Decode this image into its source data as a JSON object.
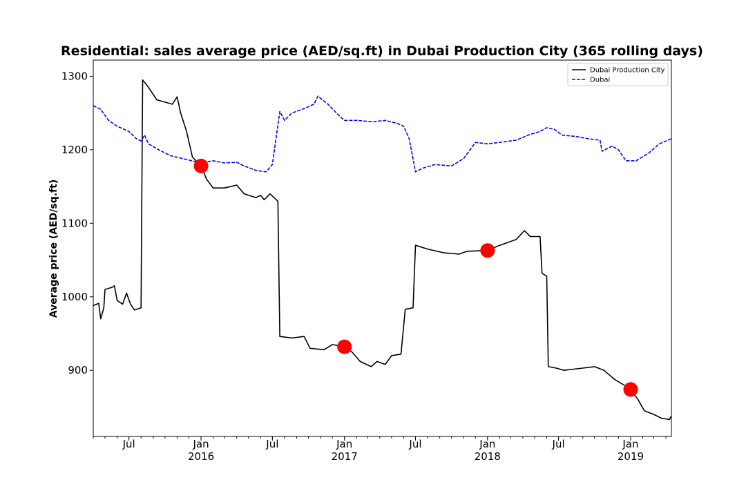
{
  "chart_data": {
    "type": "line",
    "title": "Residential: sales average price (AED/sq.ft) in Dubai Production City (365 rolling days)",
    "xlabel": "",
    "ylabel": "Average price (AED/sq.ft)",
    "xlim": [
      "2015-04-01",
      "2019-04-15"
    ],
    "ylim": [
      810,
      1322
    ],
    "y_ticks": [
      900,
      1000,
      1100,
      1200,
      1300
    ],
    "x_ticks": [
      {
        "date": "2015-07-01",
        "label": "Jul",
        "sublabel": ""
      },
      {
        "date": "2016-01-01",
        "label": "Jan",
        "sublabel": "2016"
      },
      {
        "date": "2016-07-01",
        "label": "Jul",
        "sublabel": ""
      },
      {
        "date": "2017-01-01",
        "label": "Jan",
        "sublabel": "2017"
      },
      {
        "date": "2017-07-01",
        "label": "Jul",
        "sublabel": ""
      },
      {
        "date": "2018-01-01",
        "label": "Jan",
        "sublabel": "2018"
      },
      {
        "date": "2018-07-01",
        "label": "Jul",
        "sublabel": ""
      },
      {
        "date": "2019-01-01",
        "label": "Jan",
        "sublabel": "2019"
      }
    ],
    "grid": false,
    "legend_position": "top-right",
    "series": [
      {
        "name": "Dubai Production City",
        "color": "#000000",
        "style": "solid",
        "points": [
          [
            "2015-04-01",
            988
          ],
          [
            "2015-04-15",
            991
          ],
          [
            "2015-04-20",
            970
          ],
          [
            "2015-04-28",
            985
          ],
          [
            "2015-05-01",
            1010
          ],
          [
            "2015-05-20",
            1013
          ],
          [
            "2015-05-25",
            1015
          ],
          [
            "2015-06-01",
            995
          ],
          [
            "2015-06-15",
            990
          ],
          [
            "2015-06-25",
            1005
          ],
          [
            "2015-07-05",
            990
          ],
          [
            "2015-07-15",
            982
          ],
          [
            "2015-08-01",
            985
          ],
          [
            "2015-08-05",
            1295
          ],
          [
            "2015-08-20",
            1285
          ],
          [
            "2015-09-10",
            1268
          ],
          [
            "2015-10-20",
            1262
          ],
          [
            "2015-11-01",
            1272
          ],
          [
            "2015-11-10",
            1250
          ],
          [
            "2015-11-25",
            1225
          ],
          [
            "2015-12-10",
            1190
          ],
          [
            "2016-01-01",
            1178
          ],
          [
            "2016-01-15",
            1160
          ],
          [
            "2016-02-01",
            1148
          ],
          [
            "2016-03-01",
            1148
          ],
          [
            "2016-04-01",
            1152
          ],
          [
            "2016-04-20",
            1140
          ],
          [
            "2016-05-20",
            1135
          ],
          [
            "2016-06-01",
            1138
          ],
          [
            "2016-06-10",
            1132
          ],
          [
            "2016-06-25",
            1140
          ],
          [
            "2016-07-15",
            1130
          ],
          [
            "2016-07-20",
            946
          ],
          [
            "2016-08-20",
            944
          ],
          [
            "2016-09-20",
            946
          ],
          [
            "2016-10-05",
            930
          ],
          [
            "2016-11-10",
            928
          ],
          [
            "2016-12-01",
            935
          ],
          [
            "2017-01-01",
            932
          ],
          [
            "2017-01-20",
            925
          ],
          [
            "2017-02-10",
            912
          ],
          [
            "2017-03-10",
            905
          ],
          [
            "2017-03-25",
            912
          ],
          [
            "2017-04-15",
            908
          ],
          [
            "2017-05-01",
            920
          ],
          [
            "2017-05-25",
            922
          ],
          [
            "2017-06-05",
            983
          ],
          [
            "2017-06-25",
            985
          ],
          [
            "2017-07-01",
            1070
          ],
          [
            "2017-08-01",
            1065
          ],
          [
            "2017-09-10",
            1060
          ],
          [
            "2017-10-20",
            1058
          ],
          [
            "2017-11-10",
            1062
          ],
          [
            "2018-01-01",
            1063
          ],
          [
            "2018-02-01",
            1070
          ],
          [
            "2018-03-15",
            1078
          ],
          [
            "2018-04-05",
            1090
          ],
          [
            "2018-04-20",
            1082
          ],
          [
            "2018-05-15",
            1082
          ],
          [
            "2018-05-20",
            1032
          ],
          [
            "2018-06-01",
            1028
          ],
          [
            "2018-06-05",
            905
          ],
          [
            "2018-06-25",
            903
          ],
          [
            "2018-07-15",
            900
          ],
          [
            "2018-09-01",
            903
          ],
          [
            "2018-10-01",
            905
          ],
          [
            "2018-10-25",
            900
          ],
          [
            "2018-11-20",
            888
          ],
          [
            "2018-12-15",
            880
          ],
          [
            "2019-01-01",
            874
          ],
          [
            "2019-01-20",
            860
          ],
          [
            "2019-02-05",
            845
          ],
          [
            "2019-03-01",
            840
          ],
          [
            "2019-03-20",
            835
          ],
          [
            "2019-04-10",
            833
          ],
          [
            "2019-04-15",
            838
          ]
        ]
      },
      {
        "name": "Dubai",
        "color": "#0000ff",
        "style": "dashed",
        "points": [
          [
            "2015-04-01",
            1260
          ],
          [
            "2015-04-20",
            1255
          ],
          [
            "2015-05-10",
            1240
          ],
          [
            "2015-06-01",
            1232
          ],
          [
            "2015-07-01",
            1225
          ],
          [
            "2015-07-20",
            1215
          ],
          [
            "2015-08-01",
            1212
          ],
          [
            "2015-08-10",
            1220
          ],
          [
            "2015-08-20",
            1208
          ],
          [
            "2015-09-15",
            1200
          ],
          [
            "2015-10-15",
            1192
          ],
          [
            "2015-11-15",
            1188
          ],
          [
            "2016-01-01",
            1182
          ],
          [
            "2016-02-01",
            1185
          ],
          [
            "2016-03-01",
            1182
          ],
          [
            "2016-04-01",
            1183
          ],
          [
            "2016-04-20",
            1178
          ],
          [
            "2016-05-20",
            1172
          ],
          [
            "2016-06-15",
            1170
          ],
          [
            "2016-07-01",
            1180
          ],
          [
            "2016-07-20",
            1252
          ],
          [
            "2016-08-01",
            1240
          ],
          [
            "2016-08-20",
            1250
          ],
          [
            "2016-09-20",
            1256
          ],
          [
            "2016-10-15",
            1262
          ],
          [
            "2016-10-25",
            1273
          ],
          [
            "2016-11-20",
            1262
          ],
          [
            "2016-12-15",
            1248
          ],
          [
            "2017-01-01",
            1240
          ],
          [
            "2017-02-01",
            1240
          ],
          [
            "2017-03-15",
            1238
          ],
          [
            "2017-04-15",
            1240
          ],
          [
            "2017-05-15",
            1236
          ],
          [
            "2017-06-01",
            1232
          ],
          [
            "2017-06-15",
            1215
          ],
          [
            "2017-07-01",
            1170
          ],
          [
            "2017-07-20",
            1175
          ],
          [
            "2017-08-20",
            1180
          ],
          [
            "2017-10-01",
            1178
          ],
          [
            "2017-11-01",
            1188
          ],
          [
            "2017-12-01",
            1210
          ],
          [
            "2018-01-01",
            1208
          ],
          [
            "2018-02-01",
            1210
          ],
          [
            "2018-03-15",
            1213
          ],
          [
            "2018-04-15",
            1220
          ],
          [
            "2018-05-15",
            1225
          ],
          [
            "2018-06-01",
            1230
          ],
          [
            "2018-06-20",
            1228
          ],
          [
            "2018-07-10",
            1220
          ],
          [
            "2018-08-15",
            1218
          ],
          [
            "2018-09-15",
            1215
          ],
          [
            "2018-10-15",
            1213
          ],
          [
            "2018-10-20",
            1198
          ],
          [
            "2018-11-15",
            1205
          ],
          [
            "2018-12-01",
            1200
          ],
          [
            "2018-12-20",
            1185
          ],
          [
            "2019-01-15",
            1185
          ],
          [
            "2019-02-15",
            1195
          ],
          [
            "2019-03-15",
            1208
          ],
          [
            "2019-04-15",
            1215
          ]
        ]
      }
    ],
    "markers": {
      "color": "#ff0000",
      "points": [
        [
          "2016-01-01",
          1178
        ],
        [
          "2017-01-01",
          932
        ],
        [
          "2018-01-01",
          1063
        ],
        [
          "2019-01-01",
          874
        ]
      ]
    }
  }
}
